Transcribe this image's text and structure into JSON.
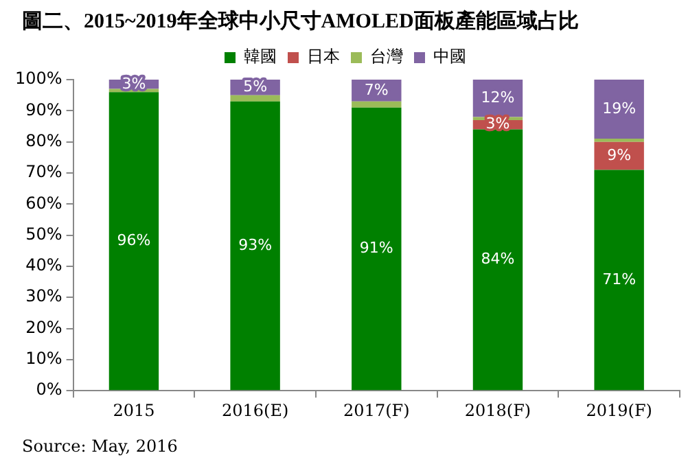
{
  "chart_data": {
    "type": "bar",
    "title": "圖二、2015~2019年全球中小尺寸AMOLED面板產能區域占比",
    "categories": [
      "2015",
      "2016(E)",
      "2017(F)",
      "2018(F)",
      "2019(F)"
    ],
    "stacked": true,
    "legend": "top",
    "grid": false,
    "ylim": [
      0,
      100
    ],
    "yticks": [
      {
        "value": 0,
        "label": "0%"
      },
      {
        "value": 10,
        "label": "10%"
      },
      {
        "value": 20,
        "label": "20%"
      },
      {
        "value": 30,
        "label": "30%"
      },
      {
        "value": 40,
        "label": "40%"
      },
      {
        "value": 50,
        "label": "50%"
      },
      {
        "value": 60,
        "label": "60%"
      },
      {
        "value": 70,
        "label": "70%"
      },
      {
        "value": 80,
        "label": "80%"
      },
      {
        "value": 90,
        "label": "90%"
      },
      {
        "value": 100,
        "label": "100%"
      }
    ],
    "series": [
      {
        "name": "韓國",
        "color": "#008000",
        "values": [
          96,
          93,
          91,
          84,
          71
        ],
        "value_labels": [
          "96%",
          "93%",
          "91%",
          "84%",
          "71%"
        ]
      },
      {
        "name": "日本",
        "color": "#c0504d",
        "values": [
          0,
          0,
          0,
          3,
          9
        ],
        "value_labels": [
          null,
          null,
          null,
          "3%",
          "9%"
        ]
      },
      {
        "name": "台灣",
        "color": "#9bbb59",
        "values": [
          1,
          2,
          2,
          1,
          1
        ]
      },
      {
        "name": "中國",
        "color": "#8064a2",
        "values": [
          3,
          5,
          7,
          12,
          19
        ],
        "value_labels": [
          "3%",
          "5%",
          "7%",
          "12%",
          "19%"
        ]
      }
    ],
    "annotations": [
      "Source: May, 2016"
    ]
  }
}
